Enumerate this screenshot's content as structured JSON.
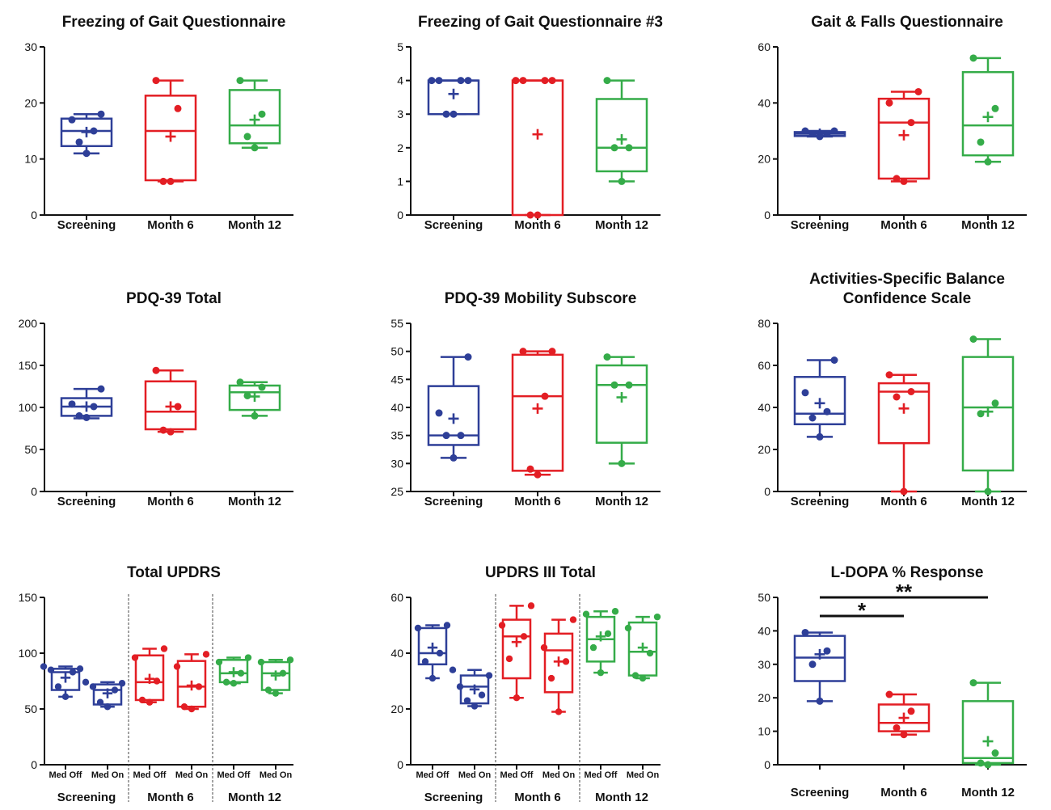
{
  "colors": {
    "screening": "#2e3f98",
    "month6": "#e31e24",
    "month12": "#35ac49",
    "axis": "#111111"
  },
  "chart_data": [
    {
      "type": "box",
      "title": [
        "Freezing of Gait Questionnaire"
      ],
      "ylim": [
        0,
        30
      ],
      "yticks": [
        0,
        10,
        20,
        30
      ],
      "groups": [
        {
          "label": "Screening",
          "color": "screening",
          "box": {
            "min": 11,
            "q1": 12.3,
            "median": 15,
            "q3": 17.2,
            "max": 18
          },
          "mean": 14.8,
          "points": [
            11,
            13,
            15,
            17,
            18
          ]
        },
        {
          "label": "Month 6",
          "color": "month6",
          "box": {
            "min": 6,
            "q1": 6.2,
            "median": 15,
            "q3": 21.3,
            "max": 24
          },
          "mean": 14,
          "points": [
            6,
            6,
            19,
            24
          ]
        },
        {
          "label": "Month 12",
          "color": "month12",
          "box": {
            "min": 12,
            "q1": 12.8,
            "median": 16,
            "q3": 22.3,
            "max": 24
          },
          "mean": 17,
          "points": [
            12,
            14,
            18,
            24
          ]
        }
      ]
    },
    {
      "type": "box",
      "title": [
        "Freezing of Gait Questionnaire #3"
      ],
      "ylim": [
        0,
        5
      ],
      "yticks": [
        0,
        1,
        2,
        3,
        4,
        5
      ],
      "groups": [
        {
          "label": "Screening",
          "color": "screening",
          "box": {
            "min": 3,
            "q1": 3,
            "median": 4,
            "q3": 4,
            "max": 4
          },
          "mean": 3.6,
          "points": [
            3,
            3,
            4,
            4,
            4,
            4
          ]
        },
        {
          "label": "Month 6",
          "color": "month6",
          "box": {
            "min": 0,
            "q1": 0,
            "median": 4,
            "q3": 4,
            "max": 4
          },
          "mean": 2.4,
          "points": [
            0,
            0,
            4,
            4,
            4,
            4
          ]
        },
        {
          "label": "Month 12",
          "color": "month12",
          "box": {
            "min": 1,
            "q1": 1.3,
            "median": 2,
            "q3": 3.45,
            "max": 4
          },
          "mean": 2.25,
          "points": [
            1,
            2,
            2,
            4
          ]
        }
      ]
    },
    {
      "type": "box",
      "title": [
        "Gait & Falls Questionnaire"
      ],
      "ylim": [
        0,
        60
      ],
      "yticks": [
        0,
        20,
        40,
        60
      ],
      "groups": [
        {
          "label": "Screening",
          "color": "screening",
          "box": {
            "min": 28,
            "q1": 28.2,
            "median": 29,
            "q3": 29.6,
            "max": 30
          },
          "mean": 29,
          "points": [
            28,
            29,
            29,
            30,
            30
          ]
        },
        {
          "label": "Month 6",
          "color": "month6",
          "box": {
            "min": 12,
            "q1": 13,
            "median": 33,
            "q3": 41.5,
            "max": 44
          },
          "mean": 28.5,
          "points": [
            12,
            13,
            33,
            40,
            44
          ]
        },
        {
          "label": "Month 12",
          "color": "month12",
          "box": {
            "min": 19,
            "q1": 21.3,
            "median": 32,
            "q3": 51,
            "max": 56
          },
          "mean": 35,
          "points": [
            19,
            26,
            38,
            56
          ]
        }
      ]
    },
    {
      "type": "box",
      "title": [
        "PDQ-39 Total"
      ],
      "ylim": [
        0,
        200
      ],
      "yticks": [
        0,
        50,
        100,
        150,
        200
      ],
      "groups": [
        {
          "label": "Screening",
          "color": "screening",
          "box": {
            "min": 87,
            "q1": 90,
            "median": 101,
            "q3": 111,
            "max": 122
          },
          "mean": 101,
          "points": [
            88,
            90,
            101,
            104,
            122
          ]
        },
        {
          "label": "Month 6",
          "color": "month6",
          "box": {
            "min": 71,
            "q1": 74,
            "median": 95,
            "q3": 131,
            "max": 144
          },
          "mean": 101,
          "points": [
            71,
            73,
            101,
            144
          ]
        },
        {
          "label": "Month 12",
          "color": "month12",
          "box": {
            "min": 90,
            "q1": 97,
            "median": 118,
            "q3": 126,
            "max": 130
          },
          "mean": 113,
          "points": [
            90,
            114,
            124,
            130
          ]
        }
      ]
    },
    {
      "type": "box",
      "title": [
        "PDQ-39 Mobility Subscore"
      ],
      "ylim": [
        25,
        55
      ],
      "yticks": [
        25,
        30,
        35,
        40,
        45,
        50,
        55
      ],
      "groups": [
        {
          "label": "Screening",
          "color": "screening",
          "box": {
            "min": 31,
            "q1": 33.3,
            "median": 35,
            "q3": 43.8,
            "max": 49
          },
          "mean": 38,
          "points": [
            31,
            35,
            35,
            39,
            49
          ]
        },
        {
          "label": "Month 6",
          "color": "month6",
          "box": {
            "min": 28,
            "q1": 28.7,
            "median": 42,
            "q3": 49.4,
            "max": 50
          },
          "mean": 39.8,
          "points": [
            28,
            29,
            42,
            50,
            50
          ]
        },
        {
          "label": "Month 12",
          "color": "month12",
          "box": {
            "min": 30,
            "q1": 33.7,
            "median": 44,
            "q3": 47.5,
            "max": 49
          },
          "mean": 41.8,
          "points": [
            30,
            44,
            44,
            49
          ]
        }
      ]
    },
    {
      "type": "box",
      "title": [
        "Activities-Specific Balance",
        "Confidence Scale"
      ],
      "ylim": [
        0,
        80
      ],
      "yticks": [
        0,
        20,
        40,
        60,
        80
      ],
      "groups": [
        {
          "label": "Screening",
          "color": "screening",
          "box": {
            "min": 26,
            "q1": 32,
            "median": 37,
            "q3": 54.5,
            "max": 62.5
          },
          "mean": 42,
          "points": [
            26,
            35,
            38,
            47,
            62.5
          ]
        },
        {
          "label": "Month 6",
          "color": "month6",
          "box": {
            "min": 0,
            "q1": 23,
            "median": 47.5,
            "q3": 51.5,
            "max": 55.5
          },
          "mean": 39.5,
          "points": [
            0,
            45,
            47.5,
            55.5
          ]
        },
        {
          "label": "Month 12",
          "color": "month12",
          "box": {
            "min": 0,
            "q1": 10,
            "median": 40,
            "q3": 64,
            "max": 72.5
          },
          "mean": 38,
          "points": [
            0,
            37,
            42,
            72.5
          ]
        }
      ]
    },
    {
      "type": "box",
      "title": [
        "Total UPDRS"
      ],
      "ylim": [
        0,
        150
      ],
      "yticks": [
        0,
        50,
        100,
        150
      ],
      "subgroups": [
        "Med Off",
        "Med On"
      ],
      "groups": [
        {
          "label": "Screening",
          "color": "screening",
          "boxes": [
            {
              "label": "Med Off",
              "box": {
                "min": 61,
                "q1": 67,
                "median": 83,
                "q3": 86,
                "max": 88
              },
              "mean": 78,
              "points": [
                61,
                70,
                83,
                85,
                86,
                88
              ]
            },
            {
              "label": "Med On",
              "box": {
                "min": 52,
                "q1": 54,
                "median": 67,
                "q3": 72,
                "max": 74
              },
              "mean": 64,
              "points": [
                52,
                56,
                67,
                70,
                73,
                74
              ]
            }
          ]
        },
        {
          "label": "Month 6",
          "color": "month6",
          "boxes": [
            {
              "label": "Med Off",
              "box": {
                "min": 56,
                "q1": 58,
                "median": 74,
                "q3": 98,
                "max": 104
              },
              "mean": 77,
              "points": [
                56,
                58,
                75,
                96,
                104
              ]
            },
            {
              "label": "Med On",
              "box": {
                "min": 50,
                "q1": 52,
                "median": 70,
                "q3": 93,
                "max": 99
              },
              "mean": 71,
              "points": [
                50,
                52,
                70,
                88,
                99
              ]
            }
          ]
        },
        {
          "label": "Month 12",
          "color": "month12",
          "boxes": [
            {
              "label": "Med Off",
              "box": {
                "min": 73,
                "q1": 74,
                "median": 82,
                "q3": 94,
                "max": 96
              },
              "mean": 83,
              "points": [
                73,
                74,
                82,
                92,
                96
              ]
            },
            {
              "label": "Med On",
              "box": {
                "min": 64,
                "q1": 67,
                "median": 82,
                "q3": 92,
                "max": 94
              },
              "mean": 80,
              "points": [
                64,
                67,
                82,
                92,
                94
              ]
            }
          ]
        }
      ]
    },
    {
      "type": "box",
      "title": [
        "UPDRS III Total"
      ],
      "ylim": [
        0,
        60
      ],
      "yticks": [
        0,
        20,
        40,
        60
      ],
      "subgroups": [
        "Med Off",
        "Med On"
      ],
      "groups": [
        {
          "label": "Screening",
          "color": "screening",
          "boxes": [
            {
              "label": "Med Off",
              "box": {
                "min": 31,
                "q1": 36,
                "median": 40,
                "q3": 49,
                "max": 50
              },
              "mean": 42,
              "points": [
                31,
                37,
                40,
                49,
                50
              ]
            },
            {
              "label": "Med On",
              "box": {
                "min": 21,
                "q1": 22,
                "median": 28,
                "q3": 32,
                "max": 34
              },
              "mean": 27,
              "points": [
                21,
                23,
                25,
                28,
                32,
                34
              ]
            }
          ]
        },
        {
          "label": "Month 6",
          "color": "month6",
          "boxes": [
            {
              "label": "Med Off",
              "box": {
                "min": 24,
                "q1": 31,
                "median": 46,
                "q3": 52,
                "max": 57
              },
              "mean": 44,
              "points": [
                24,
                38,
                46,
                50,
                57
              ]
            },
            {
              "label": "Med On",
              "box": {
                "min": 19,
                "q1": 26,
                "median": 41,
                "q3": 47,
                "max": 52
              },
              "mean": 37,
              "points": [
                19,
                31,
                37,
                42,
                52
              ]
            }
          ]
        },
        {
          "label": "Month 12",
          "color": "month12",
          "boxes": [
            {
              "label": "Med Off",
              "box": {
                "min": 33,
                "q1": 37,
                "median": 45,
                "q3": 53,
                "max": 55
              },
              "mean": 46,
              "points": [
                33,
                42,
                47,
                54,
                55
              ]
            },
            {
              "label": "Med On",
              "box": {
                "min": 31,
                "q1": 32,
                "median": 40.5,
                "q3": 51,
                "max": 53
              },
              "mean": 42,
              "points": [
                31,
                32,
                40,
                49,
                53
              ]
            }
          ]
        }
      ]
    },
    {
      "type": "box",
      "title": [
        "L-DOPA % Response"
      ],
      "ylim": [
        0,
        50
      ],
      "yticks": [
        0,
        10,
        20,
        30,
        40,
        50
      ],
      "groups": [
        {
          "label": "Screening",
          "color": "screening",
          "box": {
            "min": 19,
            "q1": 25,
            "median": 32,
            "q3": 38.5,
            "max": 39.5
          },
          "mean": 33,
          "points": [
            19,
            30,
            34,
            39.5
          ]
        },
        {
          "label": "Month 6",
          "color": "month6",
          "box": {
            "min": 9,
            "q1": 10,
            "median": 12.5,
            "q3": 18,
            "max": 21
          },
          "mean": 14,
          "points": [
            9,
            11,
            16,
            21
          ]
        },
        {
          "label": "Month 12",
          "color": "month12",
          "box": {
            "min": 0,
            "q1": 0.5,
            "median": 2,
            "q3": 19,
            "max": 24.5
          },
          "mean": 7,
          "points": [
            0,
            0.5,
            3.5,
            24.5
          ]
        }
      ],
      "significance": [
        {
          "from": "Screening",
          "to": "Month 6",
          "label": "*"
        },
        {
          "from": "Screening",
          "to": "Month 12",
          "label": "**"
        }
      ]
    }
  ]
}
